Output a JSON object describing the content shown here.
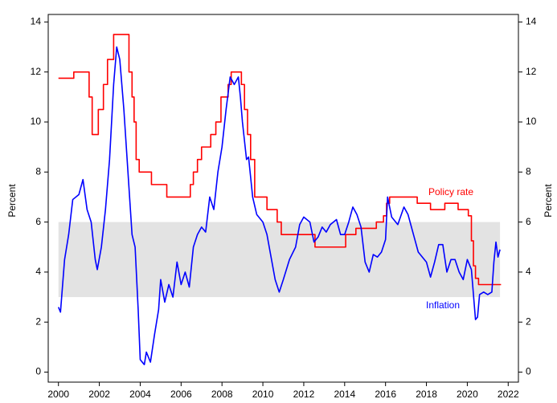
{
  "chart_data": {
    "type": "line",
    "y_label": "Percent",
    "y2_label": "Percent",
    "xlim": [
      1999.5,
      2022.5
    ],
    "xticks": [
      2000,
      2002,
      2004,
      2006,
      2008,
      2010,
      2012,
      2014,
      2016,
      2018,
      2020,
      2022
    ],
    "ylim": [
      -0.4,
      14.3
    ],
    "yticks": [
      0,
      2,
      4,
      6,
      8,
      10,
      12,
      14
    ],
    "y2lim": [
      -0.4,
      14.3
    ],
    "y2ticks": [
      0,
      2,
      4,
      6,
      8,
      10,
      12,
      14
    ],
    "band": {
      "range": [
        3,
        6
      ],
      "color": "#e3e3e3"
    },
    "series": [
      {
        "name": "Policy rate",
        "color": "#ff0000",
        "step": true,
        "x": [
          2000.0,
          2000.75,
          2001.5,
          2001.65,
          2001.95,
          2002.2,
          2002.4,
          2002.7,
          2003.45,
          2003.6,
          2003.7,
          2003.8,
          2003.95,
          2004.55,
          2005.3,
          2006.45,
          2006.6,
          2006.8,
          2007.0,
          2007.45,
          2007.7,
          2007.95,
          2008.3,
          2008.45,
          2008.95,
          2009.1,
          2009.25,
          2009.4,
          2009.6,
          2010.2,
          2010.7,
          2010.9,
          2012.55,
          2014.05,
          2014.55,
          2015.55,
          2015.9,
          2016.05,
          2016.2,
          2017.55,
          2018.2,
          2018.9,
          2019.55,
          2020.05,
          2020.2,
          2020.3,
          2020.4,
          2020.55,
          2021.65
        ],
        "values": [
          11.75,
          12,
          11,
          9.5,
          10.5,
          11.5,
          12.5,
          13.5,
          12,
          11,
          10,
          8.5,
          8,
          7.5,
          7,
          7.5,
          8,
          8.5,
          9,
          9.5,
          10,
          11,
          11.5,
          12,
          11.5,
          10.5,
          9.5,
          8.5,
          7,
          6.5,
          6,
          5.5,
          5,
          5.5,
          5.75,
          6,
          6.25,
          6.75,
          7,
          6.75,
          6.5,
          6.75,
          6.5,
          6.25,
          5.25,
          4.25,
          3.75,
          3.5,
          3.5
        ]
      },
      {
        "name": "Inflation",
        "color": "#0000ff",
        "step": false,
        "x": [
          2000.0,
          2000.1,
          2000.3,
          2000.5,
          2000.7,
          2001.0,
          2001.2,
          2001.4,
          2001.6,
          2001.8,
          2001.9,
          2002.1,
          2002.3,
          2002.5,
          2002.7,
          2002.85,
          2003.0,
          2003.2,
          2003.4,
          2003.6,
          2003.75,
          2003.9,
          2004.0,
          2004.2,
          2004.3,
          2004.5,
          2004.7,
          2004.9,
          2005.0,
          2005.2,
          2005.4,
          2005.6,
          2005.8,
          2006.0,
          2006.2,
          2006.4,
          2006.6,
          2006.8,
          2007.0,
          2007.2,
          2007.4,
          2007.6,
          2007.8,
          2008.0,
          2008.2,
          2008.4,
          2008.6,
          2008.8,
          2008.9,
          2009.0,
          2009.2,
          2009.3,
          2009.5,
          2009.7,
          2010.0,
          2010.2,
          2010.4,
          2010.6,
          2010.8,
          2011.0,
          2011.3,
          2011.6,
          2011.8,
          2012.0,
          2012.3,
          2012.5,
          2012.7,
          2012.9,
          2013.1,
          2013.3,
          2013.6,
          2013.8,
          2014.0,
          2014.2,
          2014.4,
          2014.6,
          2014.8,
          2015.0,
          2015.2,
          2015.4,
          2015.6,
          2015.8,
          2016.0,
          2016.1,
          2016.3,
          2016.6,
          2016.9,
          2017.1,
          2017.4,
          2017.6,
          2017.8,
          2018.0,
          2018.2,
          2018.4,
          2018.6,
          2018.8,
          2019.0,
          2019.2,
          2019.4,
          2019.6,
          2019.8,
          2020.0,
          2020.2,
          2020.4,
          2020.5,
          2020.6,
          2020.8,
          2021.0,
          2021.2,
          2021.3,
          2021.4,
          2021.5,
          2021.6
        ],
        "values": [
          2.6,
          2.4,
          4.5,
          5.5,
          6.9,
          7.1,
          7.7,
          6.5,
          6.0,
          4.5,
          4.1,
          5.0,
          6.5,
          8.5,
          11.5,
          13.0,
          12.5,
          10.5,
          8.0,
          5.5,
          5.0,
          2.5,
          0.5,
          0.3,
          0.8,
          0.4,
          1.5,
          2.5,
          3.7,
          2.8,
          3.5,
          3.0,
          4.4,
          3.5,
          4.0,
          3.4,
          5.0,
          5.5,
          5.8,
          5.6,
          7.0,
          6.5,
          8.0,
          9.0,
          10.5,
          11.8,
          11.5,
          11.8,
          11.0,
          10.0,
          8.5,
          8.6,
          7.0,
          6.3,
          6.0,
          5.5,
          4.6,
          3.7,
          3.2,
          3.7,
          4.5,
          5.0,
          5.9,
          6.2,
          6.0,
          5.2,
          5.4,
          5.8,
          5.6,
          5.9,
          6.1,
          5.5,
          5.5,
          6.0,
          6.6,
          6.3,
          5.8,
          4.4,
          4.0,
          4.7,
          4.6,
          4.8,
          5.3,
          7.0,
          6.2,
          5.9,
          6.6,
          6.3,
          5.4,
          4.8,
          4.6,
          4.4,
          3.8,
          4.4,
          5.1,
          5.1,
          4.0,
          4.5,
          4.5,
          4.0,
          3.7,
          4.5,
          4.1,
          2.1,
          2.2,
          3.1,
          3.2,
          3.1,
          3.2,
          4.4,
          5.2,
          4.6,
          4.9
        ]
      }
    ],
    "annotations": [
      {
        "text": "Policy rate",
        "color": "#ff0000"
      },
      {
        "text": "Inflation",
        "color": "#0000ff"
      }
    ]
  }
}
